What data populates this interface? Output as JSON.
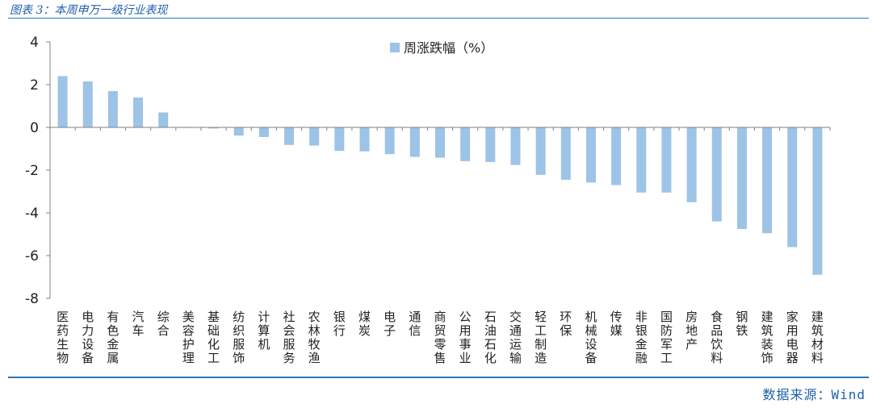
{
  "figure": {
    "title": "图表 3：本周申万一级行业表现",
    "source": "数据来源：Wind"
  },
  "colors": {
    "bar": "#9dc3e6",
    "axis": "#808080",
    "rule": "#2e75b6"
  },
  "chart_data": {
    "type": "bar",
    "title": "",
    "xlabel": "",
    "ylabel": "",
    "ylim": [
      -8,
      4
    ],
    "yticks": [
      4,
      2,
      0,
      -2,
      -4,
      -6,
      -8
    ],
    "grid": false,
    "legend_position": "top-center",
    "categories": [
      "医药生物",
      "电力设备",
      "有色金属",
      "汽车",
      "综合",
      "美容护理",
      "基础化工",
      "纺织服饰",
      "计算机",
      "社会服务",
      "农林牧渔",
      "银行",
      "煤炭",
      "电子",
      "通信",
      "商贸零售",
      "公用事业",
      "石油石化",
      "交通运输",
      "轻工制造",
      "环保",
      "机械设备",
      "传媒",
      "非银金融",
      "国防军工",
      "房地产",
      "食品饮料",
      "钢铁",
      "建筑装饰",
      "家用电器",
      "建筑材料"
    ],
    "series": [
      {
        "name": "周涨跌幅（%）",
        "values": [
          2.4,
          2.15,
          1.7,
          1.4,
          0.7,
          0.0,
          -0.05,
          -0.38,
          -0.45,
          -0.82,
          -0.85,
          -1.1,
          -1.12,
          -1.25,
          -1.38,
          -1.42,
          -1.58,
          -1.62,
          -1.76,
          -2.22,
          -2.45,
          -2.58,
          -2.7,
          -3.05,
          -3.05,
          -3.5,
          -4.4,
          -4.75,
          -4.95,
          -5.6,
          -6.9
        ]
      }
    ]
  }
}
